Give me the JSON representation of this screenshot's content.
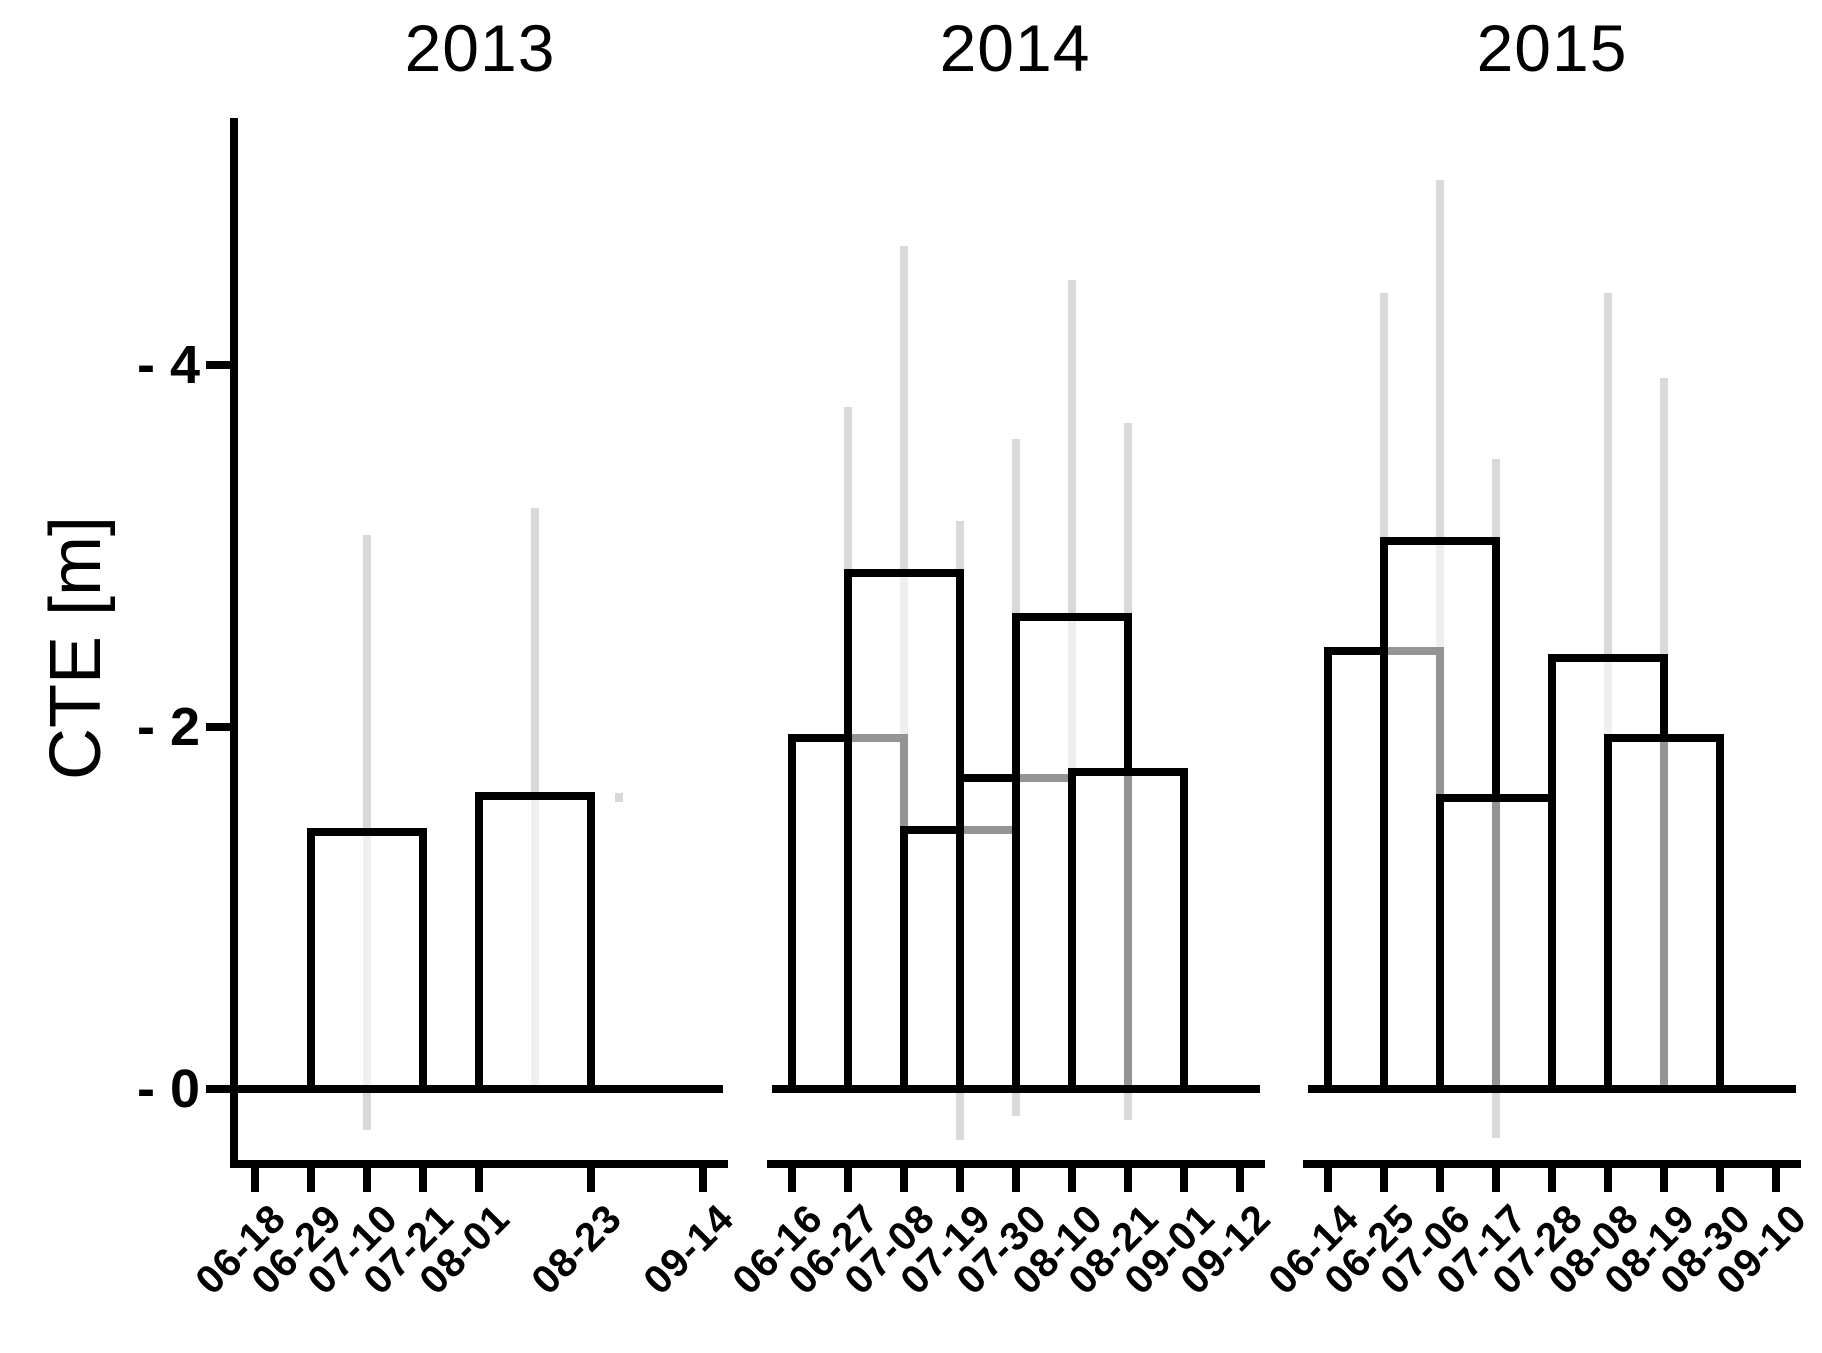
{
  "chart_data": {
    "type": "bar",
    "title": "",
    "ylabel": "CTE [m]",
    "xlabel": "",
    "ylim": [
      -0.6,
      5.6
    ],
    "grid": false,
    "legend": null,
    "bar_outline_color": "#000000",
    "error_bar_color": "#d9d9d9",
    "axis_color": "#000000",
    "y_ticks": [
      {
        "value": 0,
        "label": "- 0"
      },
      {
        "value": 2,
        "label": "- 2"
      },
      {
        "value": 4,
        "label": "- 4"
      }
    ],
    "facets": [
      {
        "title": "2013",
        "x_ticks": [
          {
            "slot": 0,
            "label": "06-18"
          },
          {
            "slot": 1,
            "label": "06-29"
          },
          {
            "slot": 2,
            "label": "07-10"
          },
          {
            "slot": 3,
            "label": "07-21"
          },
          {
            "slot": 4,
            "label": "08-01"
          },
          {
            "slot": 6,
            "label": "08-23"
          },
          {
            "slot": 8,
            "label": "09-14"
          }
        ],
        "bars": [
          {
            "slot": 2,
            "date": "07-10",
            "span": "06-29 to 07-21",
            "value": 1.42,
            "ci_low": -0.23,
            "ci_high": 3.06
          },
          {
            "slot": 5,
            "date": "08-12",
            "span": "08-01 to 08-23",
            "value": 1.62,
            "ci_low": 0.0,
            "ci_high": 3.21
          }
        ]
      },
      {
        "title": "2014",
        "x_ticks": [
          {
            "slot": 0,
            "label": "06-16"
          },
          {
            "slot": 1,
            "label": "06-27"
          },
          {
            "slot": 2,
            "label": "07-08"
          },
          {
            "slot": 3,
            "label": "07-19"
          },
          {
            "slot": 4,
            "label": "07-30"
          },
          {
            "slot": 5,
            "label": "08-10"
          },
          {
            "slot": 6,
            "label": "08-21"
          },
          {
            "slot": 7,
            "label": "09-01"
          },
          {
            "slot": 8,
            "label": "09-12"
          }
        ],
        "bars": [
          {
            "slot": 1,
            "date": "06-27",
            "span": "06-16 to 07-08",
            "value": 1.94,
            "ci_low": 0.0,
            "ci_high": 3.77
          },
          {
            "slot": 2,
            "date": "07-08",
            "span": "06-27 to 07-19",
            "value": 2.85,
            "ci_low": 0.0,
            "ci_high": 4.66
          },
          {
            "slot": 3,
            "date": "07-19",
            "span": "07-08 to 07-30",
            "value": 1.43,
            "ci_low": -0.28,
            "ci_high": 3.14
          },
          {
            "slot": 4,
            "date": "07-30",
            "span": "07-19 to 08-10",
            "value": 1.72,
            "ci_low": -0.15,
            "ci_high": 3.59
          },
          {
            "slot": 5,
            "date": "08-10",
            "span": "07-30 to 08-21",
            "value": 2.61,
            "ci_low": 0.0,
            "ci_high": 4.47
          },
          {
            "slot": 6,
            "date": "08-21",
            "span": "08-10 to 09-01",
            "value": 1.75,
            "ci_low": -0.17,
            "ci_high": 3.68
          }
        ]
      },
      {
        "title": "2015",
        "x_ticks": [
          {
            "slot": 0,
            "label": "06-14"
          },
          {
            "slot": 1,
            "label": "06-25"
          },
          {
            "slot": 2,
            "label": "07-06"
          },
          {
            "slot": 3,
            "label": "07-17"
          },
          {
            "slot": 4,
            "label": "07-28"
          },
          {
            "slot": 5,
            "label": "08-08"
          },
          {
            "slot": 6,
            "label": "08-19"
          },
          {
            "slot": 7,
            "label": "08-30"
          },
          {
            "slot": 8,
            "label": "09-10"
          }
        ],
        "bars": [
          {
            "slot": 1,
            "date": "06-25",
            "span": "06-14 to 07-06",
            "value": 2.42,
            "ci_low": 0.0,
            "ci_high": 4.4
          },
          {
            "slot": 2,
            "date": "07-06",
            "span": "06-25 to 07-17",
            "value": 3.03,
            "ci_low": 0.0,
            "ci_high": 5.02
          },
          {
            "slot": 3,
            "date": "07-17",
            "span": "07-06 to 07-28",
            "value": 1.61,
            "ci_low": -0.27,
            "ci_high": 3.48
          },
          {
            "slot": 5,
            "date": "08-08",
            "span": "07-28 to 08-19",
            "value": 2.38,
            "ci_low": 0.0,
            "ci_high": 4.4
          },
          {
            "slot": 6,
            "date": "08-19",
            "span": "08-08 to 08-30",
            "value": 1.94,
            "ci_low": 0.0,
            "ci_high": 3.93
          }
        ]
      }
    ]
  }
}
